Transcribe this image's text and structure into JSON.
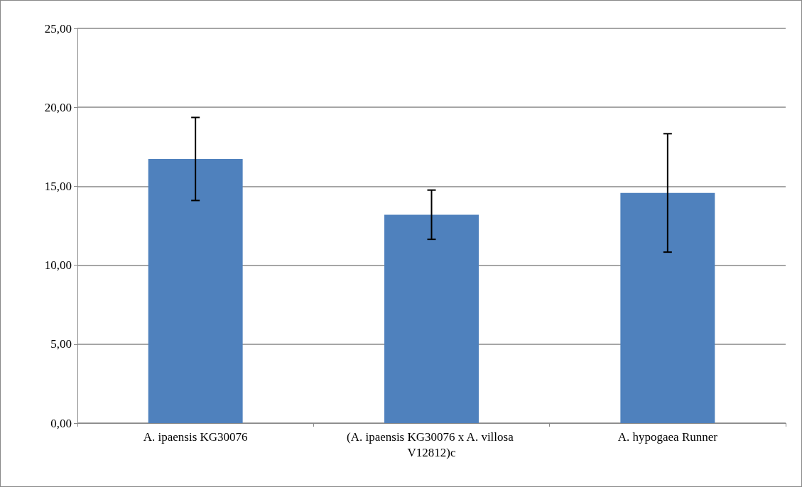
{
  "chart_data": {
    "type": "bar",
    "categories": [
      "A. ipaensis KG30076",
      "(A. ipaensis KG30076 x A. villosa V12812)c",
      "A. hypogaea Runner"
    ],
    "values": [
      16.73,
      13.2,
      14.58
    ],
    "errors": [
      2.63,
      1.56,
      3.75
    ],
    "color": "#4f81bd",
    "ylim": [
      0,
      25
    ],
    "yticks": [
      {
        "value": 0,
        "label": "0,00"
      },
      {
        "value": 5,
        "label": "5,00"
      },
      {
        "value": 10,
        "label": "10,00"
      },
      {
        "value": 15,
        "label": "15,00"
      },
      {
        "value": 20,
        "label": "20,00"
      },
      {
        "value": 25,
        "label": "25,00"
      }
    ],
    "grid": "y"
  }
}
